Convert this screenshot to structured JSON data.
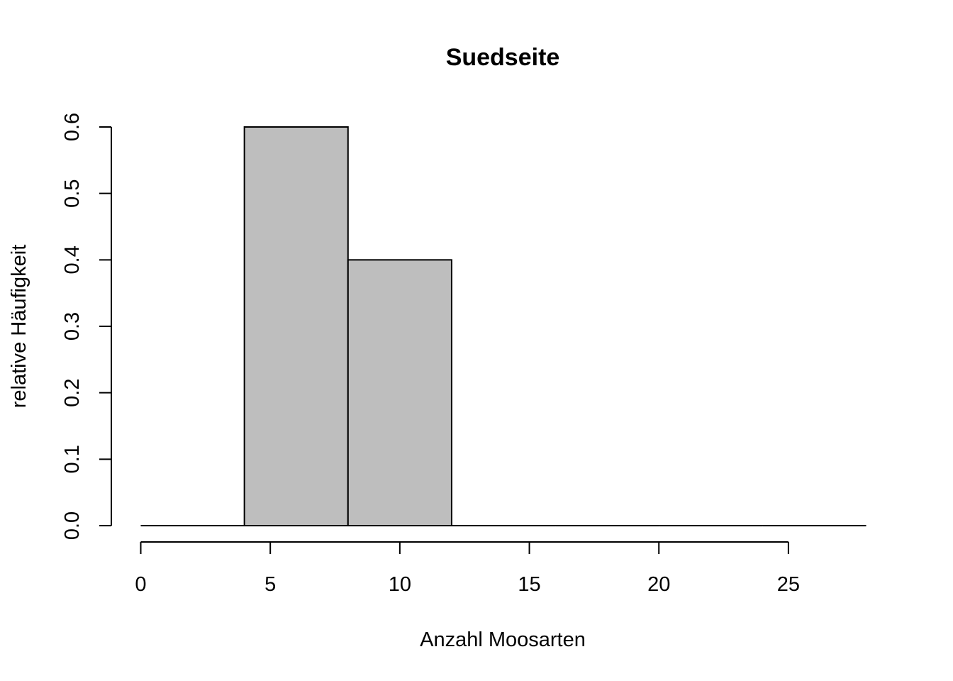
{
  "chart_data": {
    "type": "bar",
    "subtype": "histogram",
    "title": "Suedseite",
    "xlabel": "Anzahl Moosarten",
    "ylabel": "relative Häufigkeit",
    "bins": [
      {
        "start": 0,
        "end": 4,
        "value": 0.0
      },
      {
        "start": 4,
        "end": 8,
        "value": 0.6
      },
      {
        "start": 8,
        "end": 12,
        "value": 0.4
      },
      {
        "start": 12,
        "end": 16,
        "value": 0.0
      },
      {
        "start": 16,
        "end": 20,
        "value": 0.0
      },
      {
        "start": 20,
        "end": 24,
        "value": 0.0
      },
      {
        "start": 24,
        "end": 28,
        "value": 0.0
      }
    ],
    "xlim": [
      0,
      28
    ],
    "ylim": [
      0,
      0.6
    ],
    "x_ticks": [
      0,
      5,
      10,
      15,
      20,
      25
    ],
    "x_tick_labels": [
      "0",
      "5",
      "10",
      "15",
      "20",
      "25"
    ],
    "y_ticks": [
      0.0,
      0.1,
      0.2,
      0.3,
      0.4,
      0.5,
      0.6
    ],
    "y_tick_labels": [
      "0.0",
      "0.1",
      "0.2",
      "0.3",
      "0.4",
      "0.5",
      "0.6"
    ],
    "bar_color": "#bebebe",
    "grid": false
  }
}
